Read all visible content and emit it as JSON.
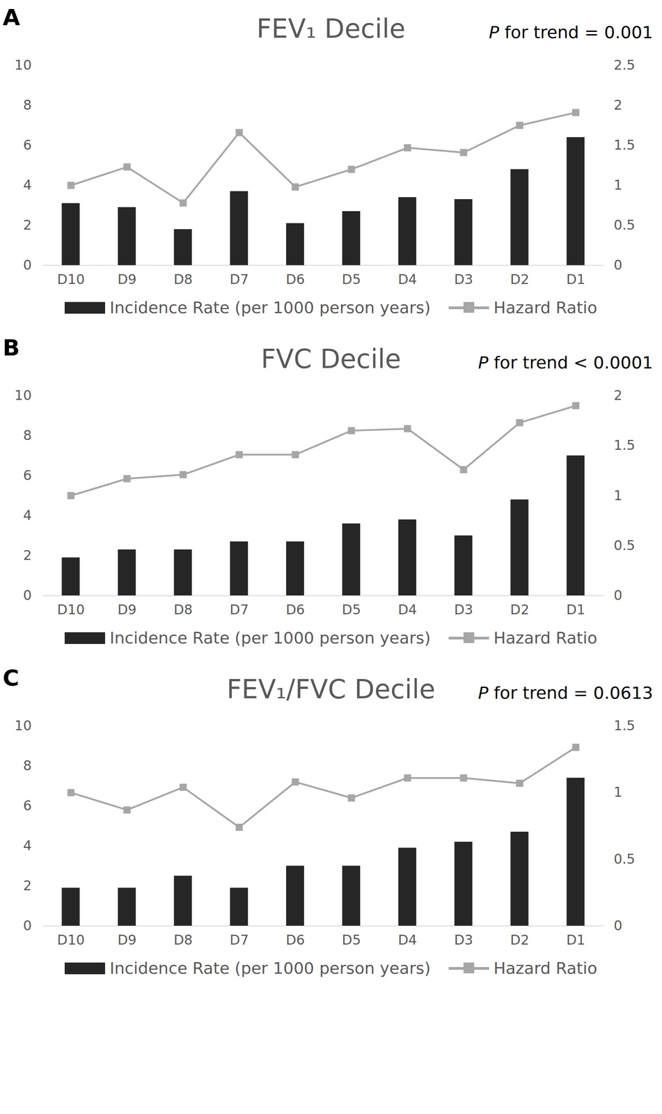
{
  "chart_data": [
    {
      "type": "bar",
      "panel_label": "A",
      "title": "FEV₁ Decile",
      "annotation": "P for trend = 0.001",
      "categories": [
        "D10",
        "D9",
        "D8",
        "D7",
        "D6",
        "D5",
        "D4",
        "D3",
        "D2",
        "D1"
      ],
      "series": [
        {
          "name": "Incidence Rate (per 1000 person years)",
          "type": "bar",
          "color": "#262626",
          "values": [
            3.1,
            2.9,
            1.8,
            3.7,
            2.1,
            2.7,
            3.4,
            3.3,
            4.8,
            6.4
          ]
        },
        {
          "name": "Hazard Ratio",
          "type": "line",
          "axis": "y2",
          "color": "#a6a6a6",
          "marker": "square",
          "values": [
            1.0,
            1.23,
            0.78,
            1.66,
            0.98,
            1.2,
            1.47,
            1.41,
            1.75,
            1.91
          ]
        }
      ],
      "ylim": [
        0,
        10
      ],
      "yticks": [
        0,
        2,
        4,
        6,
        8,
        10
      ],
      "y2lim": [
        0,
        2.5
      ],
      "y2ticks": [
        0,
        0.5,
        1,
        1.5,
        2,
        2.5
      ],
      "grid": false,
      "legend": "bottom"
    },
    {
      "type": "bar",
      "panel_label": "B",
      "title": "FVC Decile",
      "annotation": "P for trend < 0.0001",
      "categories": [
        "D10",
        "D9",
        "D8",
        "D7",
        "D6",
        "D5",
        "D4",
        "D3",
        "D2",
        "D1"
      ],
      "series": [
        {
          "name": "Incidence Rate (per 1000 person years)",
          "type": "bar",
          "color": "#262626",
          "values": [
            1.9,
            2.3,
            2.3,
            2.7,
            2.7,
            3.6,
            3.8,
            3.0,
            4.8,
            7.0
          ]
        },
        {
          "name": "Hazard Ratio",
          "type": "line",
          "axis": "y2",
          "color": "#a6a6a6",
          "marker": "square",
          "values": [
            1.0,
            1.17,
            1.21,
            1.41,
            1.41,
            1.65,
            1.67,
            1.26,
            1.73,
            1.9
          ]
        }
      ],
      "ylim": [
        0,
        10
      ],
      "yticks": [
        0,
        2,
        4,
        6,
        8,
        10
      ],
      "y2lim": [
        0,
        2
      ],
      "y2ticks": [
        0,
        0.5,
        1,
        1.5,
        2
      ],
      "grid": false,
      "legend": "bottom"
    },
    {
      "type": "bar",
      "panel_label": "C",
      "title": "FEV₁/FVC Decile",
      "annotation": "P for trend = 0.0613",
      "categories": [
        "D10",
        "D9",
        "D8",
        "D7",
        "D6",
        "D5",
        "D4",
        "D3",
        "D2",
        "D1"
      ],
      "series": [
        {
          "name": "Incidence Rate (per 1000 person years)",
          "type": "bar",
          "color": "#262626",
          "values": [
            1.9,
            1.9,
            2.5,
            1.9,
            3.0,
            3.0,
            3.9,
            4.2,
            4.7,
            7.4
          ]
        },
        {
          "name": "Hazard Ratio",
          "type": "line",
          "axis": "y2",
          "color": "#a6a6a6",
          "marker": "square",
          "values": [
            1.0,
            0.87,
            1.04,
            0.74,
            1.08,
            0.96,
            1.11,
            1.11,
            1.07,
            1.34
          ]
        }
      ],
      "ylim": [
        0,
        10
      ],
      "yticks": [
        0,
        2,
        4,
        6,
        8,
        10
      ],
      "y2lim": [
        0,
        1.5
      ],
      "y2ticks": [
        0,
        0.5,
        1,
        1.5
      ],
      "grid": false,
      "legend": "bottom"
    }
  ]
}
